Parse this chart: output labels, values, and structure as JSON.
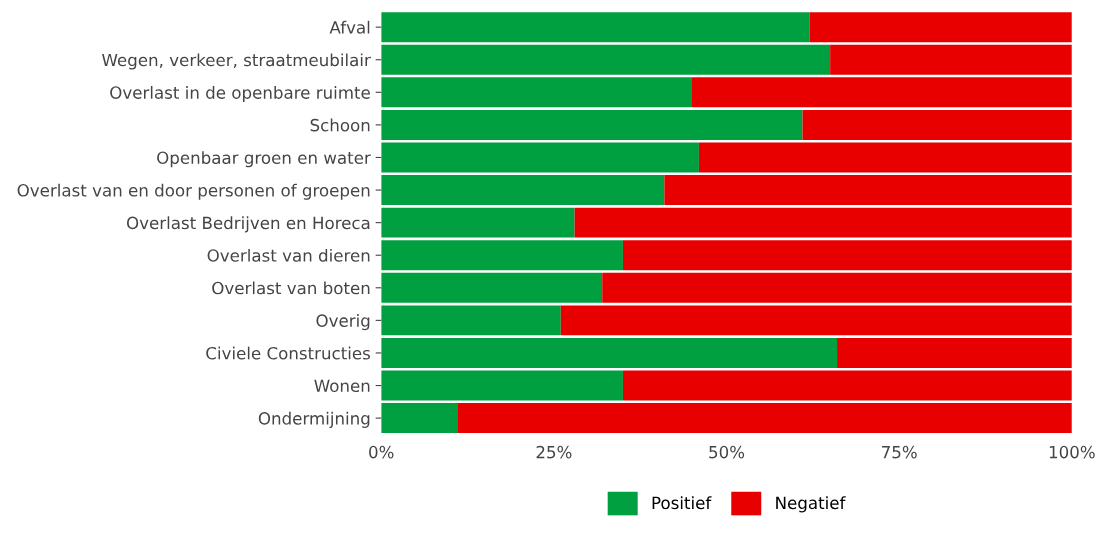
{
  "chart_data": {
    "type": "bar",
    "orientation": "horizontal",
    "stacked": true,
    "categories": [
      "Afval",
      "Wegen, verkeer, straatmeubilair",
      "Overlast in de openbare ruimte",
      "Schoon",
      "Openbaar groen en water",
      "Overlast van en door personen of groepen",
      "Overlast Bedrijven en Horeca",
      "Overlast van dieren",
      "Overlast van boten",
      "Overig",
      "Civiele Constructies",
      "Wonen",
      "Ondermijning"
    ],
    "series": [
      {
        "name": "Positief",
        "color": "#00a040",
        "values": [
          62,
          65,
          45,
          61,
          46,
          41,
          28,
          35,
          32,
          26,
          66,
          35,
          11
        ]
      },
      {
        "name": "Negatief",
        "color": "#e80000",
        "values": [
          38,
          35,
          55,
          39,
          54,
          59,
          72,
          65,
          68,
          74,
          34,
          65,
          89
        ]
      }
    ],
    "xlim": [
      0,
      100
    ],
    "xticks": [
      {
        "value": 0,
        "label": "0%"
      },
      {
        "value": 25,
        "label": "25%"
      },
      {
        "value": 50,
        "label": "50%"
      },
      {
        "value": 75,
        "label": "75%"
      },
      {
        "value": 100,
        "label": "100%"
      }
    ],
    "grid": false,
    "legend": "bottom"
  }
}
